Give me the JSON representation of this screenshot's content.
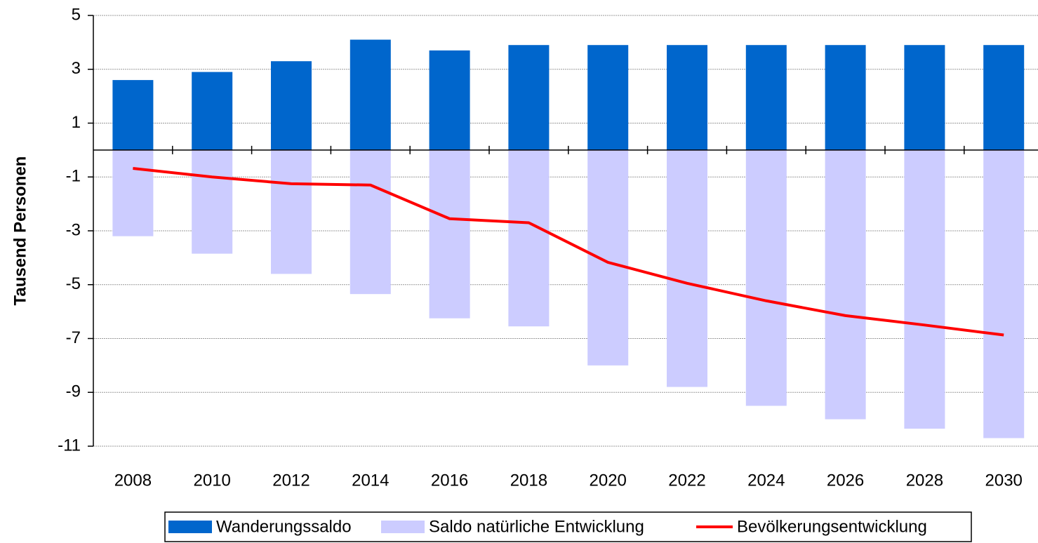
{
  "chart_data": {
    "type": "bar",
    "y_label": "Tausend Personen",
    "categories": [
      "2008",
      "2010",
      "2012",
      "2014",
      "2016",
      "2018",
      "2020",
      "2022",
      "2024",
      "2026",
      "2028",
      "2030"
    ],
    "series": [
      {
        "name": "Wanderungssaldo",
        "type": "bar",
        "color": "#0066cc",
        "values": [
          2.6,
          2.9,
          3.3,
          4.1,
          3.7,
          3.9,
          3.9,
          3.9,
          3.9,
          3.9,
          3.9,
          3.9
        ]
      },
      {
        "name": "Saldo natürliche Entwicklung",
        "type": "bar",
        "color": "#ccccff",
        "values": [
          -3.2,
          -3.85,
          -4.6,
          -5.35,
          -6.25,
          -6.55,
          -8.0,
          -8.8,
          -9.5,
          -10.0,
          -10.35,
          -10.7
        ]
      },
      {
        "name": "Bevölkerungsentwicklung",
        "type": "line",
        "color": "#ff0000",
        "values": [
          -0.68,
          -1.0,
          -1.25,
          -1.3,
          -2.55,
          -2.7,
          -4.17,
          -4.95,
          -5.6,
          -6.15,
          -6.5,
          -6.87
        ]
      }
    ],
    "ylim": [
      -11,
      5
    ],
    "yticks": [
      5,
      3,
      1,
      -1,
      -3,
      -5,
      -7,
      -9,
      -11
    ],
    "grid": true
  }
}
